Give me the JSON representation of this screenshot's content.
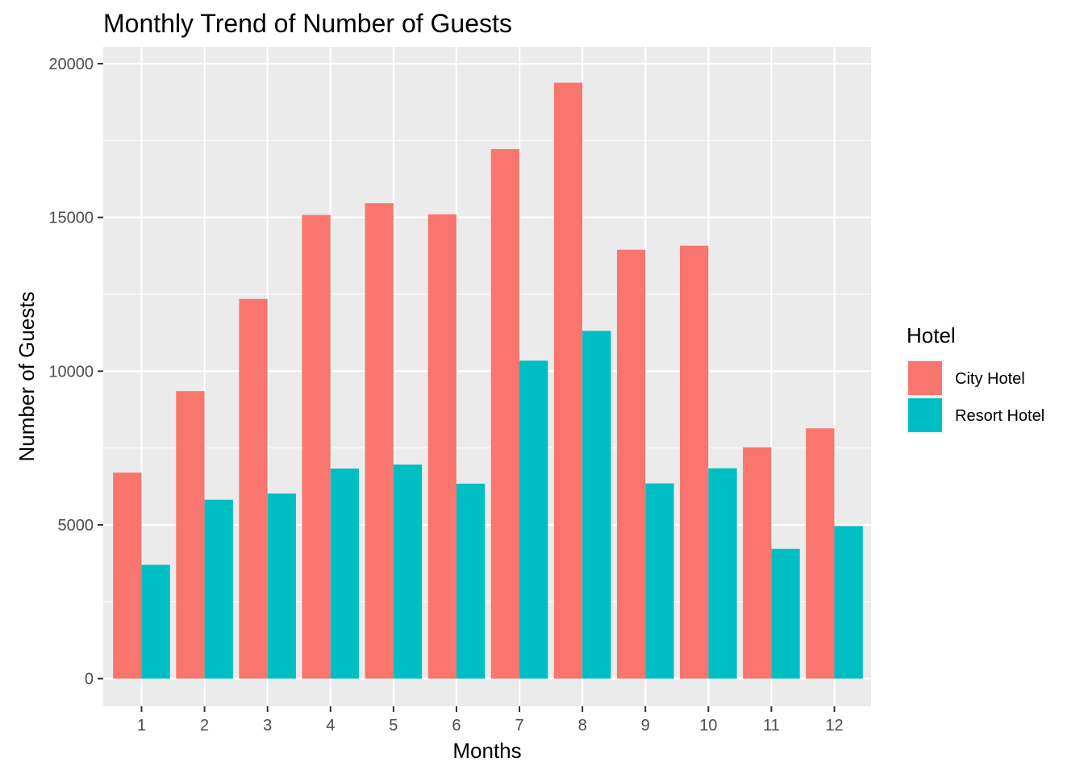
{
  "chart_data": {
    "type": "bar",
    "title": "Monthly Trend of Number of Guests",
    "xlabel": "Months",
    "ylabel": "Number of Guests",
    "categories": [
      "1",
      "2",
      "3",
      "4",
      "5",
      "6",
      "7",
      "8",
      "9",
      "10",
      "11",
      "12"
    ],
    "series": [
      {
        "name": "City Hotel",
        "color": "#F8766D",
        "values": [
          6700,
          9350,
          12350,
          15080,
          15460,
          15100,
          17220,
          19380,
          13950,
          14080,
          7520,
          8140
        ]
      },
      {
        "name": "Resort Hotel",
        "color": "#00BFC4",
        "values": [
          3700,
          5820,
          6020,
          6830,
          6960,
          6340,
          10340,
          11310,
          6350,
          6840,
          4220,
          4960
        ]
      }
    ],
    "ylim": [
      -900,
      20550
    ],
    "yticks": [
      0,
      5000,
      10000,
      15000,
      20000
    ],
    "ytick_labels": [
      "0",
      "5000",
      "10000",
      "15000",
      "20000"
    ],
    "legend": {
      "title": "Hotel",
      "position": "right"
    },
    "grid": true,
    "panel_background": "#EBEBEB"
  }
}
